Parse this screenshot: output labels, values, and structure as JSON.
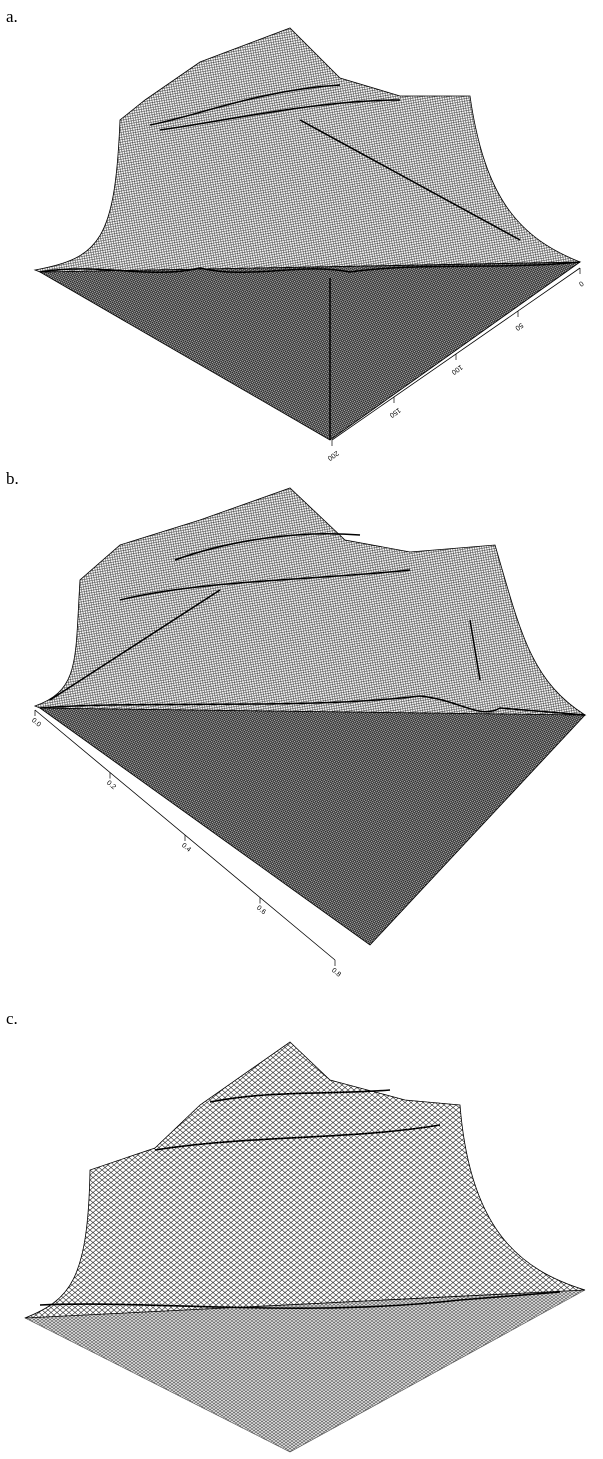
{
  "panels": [
    {
      "label": "a.",
      "axis_ticks": [
        0,
        50,
        100,
        150,
        200
      ]
    },
    {
      "label": "b.",
      "axis_ticks": [
        {
          "value": 0,
          "label": "0.0"
        },
        0.2,
        0.4,
        0.6,
        0.8
      ]
    },
    {
      "label": "c.",
      "axis_ticks": []
    }
  ]
}
